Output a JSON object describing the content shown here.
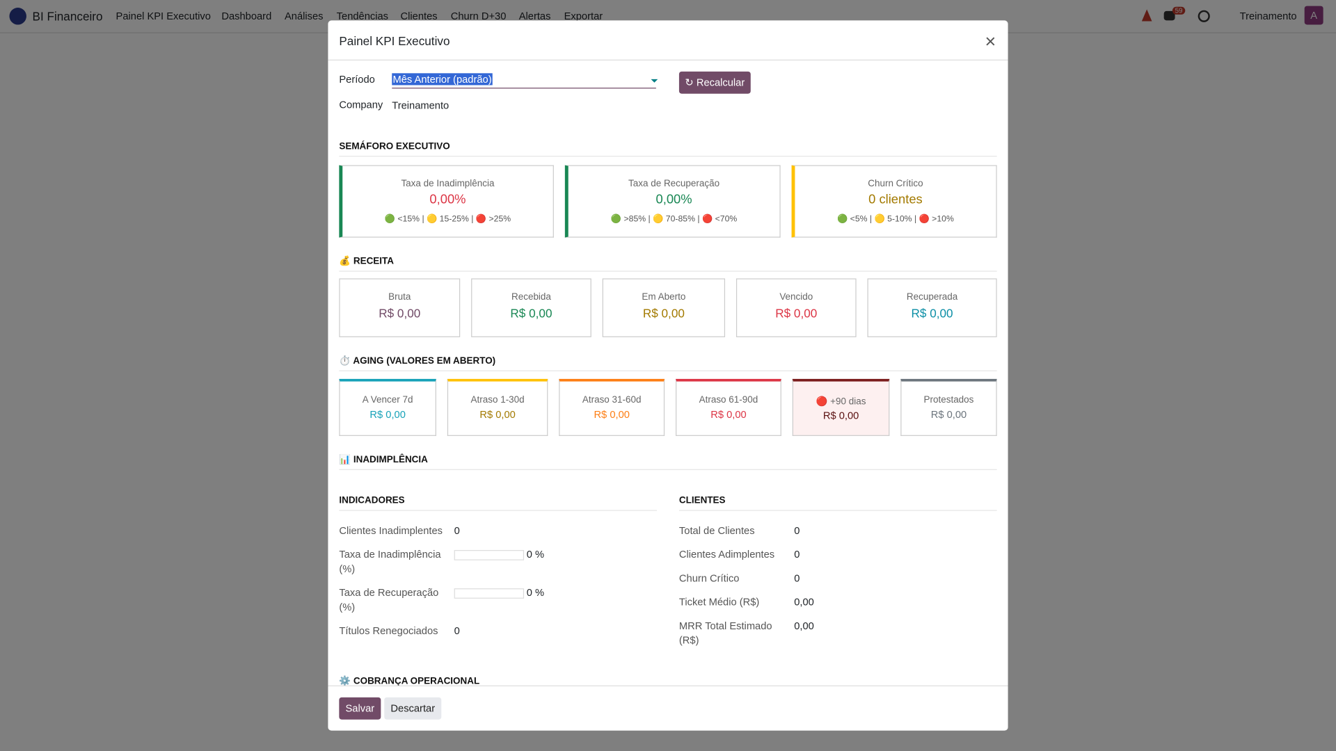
{
  "navbar": {
    "brand": "BI Financeiro",
    "menu": [
      "Painel KPI Executivo",
      "Dashboard",
      "Análises",
      "Tendências",
      "Clientes",
      "Churn D+30",
      "Alertas",
      "Exportar"
    ],
    "badge": "59",
    "user": "Treinamento",
    "avatar": "A"
  },
  "modal": {
    "title": "Painel KPI Executivo",
    "fields": [
      {
        "label": "Período",
        "value": "Mês Anterior (padrão)"
      },
      {
        "label": "Company",
        "value": "Treinamento"
      }
    ],
    "recalc_button": "↻ Recalcular",
    "semaforo": {
      "title": "SEMÁFORO EXECUTIVO",
      "cards": [
        {
          "label": "Taxa de Inadimplência",
          "value": "0,00%",
          "legend": "🟢 <15% | 🟡 15-25% | 🔴 >25%",
          "color": "#dc3545",
          "border": "#198754"
        },
        {
          "label": "Taxa de Recuperação",
          "value": "0,00%",
          "legend": "🟢 >85% | 🟡 70-85% | 🔴 <70%",
          "color": "#198754",
          "border": "#198754"
        },
        {
          "label": "Churn Crítico",
          "value": "0 clientes",
          "legend": "🟢 <5% | 🟡 5-10% | 🔴 >10%",
          "color": "#a37a00",
          "border": "#ffc107"
        }
      ]
    },
    "receita": {
      "title": "💰 RECEITA",
      "cards": [
        {
          "label": "Bruta",
          "value": "R$ 0,00",
          "color": "#714b67"
        },
        {
          "label": "Recebida",
          "value": "R$ 0,00",
          "color": "#198754"
        },
        {
          "label": "Em Aberto",
          "value": "R$ 0,00",
          "color": "#a37a00"
        },
        {
          "label": "Vencido",
          "value": "R$ 0,00",
          "color": "#dc3545"
        },
        {
          "label": "Recuperada",
          "value": "R$ 0,00",
          "color": "#0d8fa6"
        }
      ]
    },
    "aging": {
      "title": "⏱️ AGING (VALORES EM ABERTO)",
      "cards": [
        {
          "label": "A Vencer 7d",
          "value": "R$ 0,00",
          "color": "#17a2b8"
        },
        {
          "label": "Atraso 1-30d",
          "value": "R$ 0,00",
          "color": "#a37a00",
          "border": "#ffc107"
        },
        {
          "label": "Atraso 31-60d",
          "value": "R$ 0,00",
          "color": "#fd7e14"
        },
        {
          "label": "Atraso 61-90d",
          "value": "R$ 0,00",
          "color": "#dc3545"
        },
        {
          "label": "🔴 +90 dias",
          "value": "R$ 0,00",
          "color": "#5a1010",
          "border": "#7b1c1c",
          "highlight": true
        },
        {
          "label": "Protestados",
          "value": "R$ 0,00",
          "color": "#6c757d"
        }
      ]
    },
    "inadimplencia": {
      "title": "📊 INADIMPLÊNCIA",
      "indicadores": {
        "title": "INDICADORES",
        "rows": [
          {
            "label": "Clientes Inadimplentes",
            "value": "0"
          },
          {
            "label": "Taxa de Inadimplência (%)",
            "value": "0 %",
            "widget": "progressbar"
          },
          {
            "label": "Taxa de Recuperação (%)",
            "value": "0 %",
            "widget": "progressbar"
          },
          {
            "label": "Títulos Renegociados",
            "value": "0"
          }
        ]
      },
      "clientes": {
        "title": "CLIENTES",
        "rows": [
          {
            "label": "Total de Clientes",
            "value": "0"
          },
          {
            "label": "Clientes Adimplentes",
            "value": "0"
          },
          {
            "label": "Churn Crítico",
            "value": "0"
          },
          {
            "label": "Ticket Médio (R$)",
            "value": "0,00"
          },
          {
            "label": "MRR Total Estimado (R$)",
            "value": "0,00"
          }
        ]
      }
    },
    "cobranca": {
      "title": "⚙️ COBRANÇA OPERACIONAL"
    },
    "buttons": {
      "save": "Salvar",
      "discard": "Descartar"
    }
  }
}
